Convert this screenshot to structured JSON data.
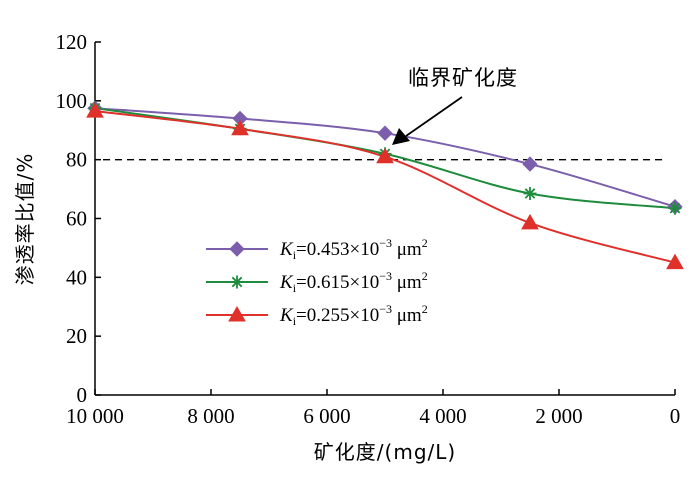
{
  "chart_data": {
    "type": "line",
    "title": "",
    "xlabel": "矿化度/(mg/L)",
    "ylabel": "渗透率比值/%",
    "xlim": [
      10000,
      0
    ],
    "ylim": [
      0,
      120
    ],
    "x_ticks": [
      10000,
      8000,
      6000,
      4000,
      2000,
      0
    ],
    "x_tick_labels": [
      "10 000",
      "8 000",
      "6 000",
      "4 000",
      "2 000",
      "0"
    ],
    "y_ticks": [
      0,
      20,
      40,
      60,
      80,
      100,
      120
    ],
    "y_tick_labels": [
      "0",
      "20",
      "40",
      "60",
      "80",
      "100",
      "120"
    ],
    "grid": false,
    "legend_position": "center-left",
    "reference_line": {
      "y": 80,
      "style": "dashed"
    },
    "annotation": {
      "text": "临界矿化度",
      "points_to": {
        "x": 5000,
        "y": 80
      }
    },
    "series": [
      {
        "name": "Ki=0.453×10−3 μm2",
        "symbol": "K",
        "subscript": "i",
        "value_text": "=0.453×10",
        "exponent": "−3",
        "unit": " μm",
        "unit_exp": "2",
        "marker": "diamond",
        "color": "#7b5fad",
        "x": [
          10000,
          7500,
          5000,
          2500,
          0
        ],
        "y": [
          97.5,
          94,
          89,
          78.5,
          64
        ]
      },
      {
        "name": "Ki=0.615×10−3 μm2",
        "symbol": "K",
        "subscript": "i",
        "value_text": "=0.615×10",
        "exponent": "−3",
        "unit": " μm",
        "unit_exp": "2",
        "marker": "asterisk",
        "color": "#1e8c3c",
        "x": [
          10000,
          7500,
          5000,
          2500,
          0
        ],
        "y": [
          97.5,
          90.5,
          82,
          68.5,
          63.5
        ]
      },
      {
        "name": "Ki=0.255×10−3 μm2",
        "symbol": "K",
        "subscript": "i",
        "value_text": "=0.255×10",
        "exponent": "−3",
        "unit": " μm",
        "unit_exp": "2",
        "marker": "triangle",
        "color": "#e0302a",
        "x": [
          10000,
          7500,
          5000,
          2500,
          0
        ],
        "y": [
          96.5,
          90.5,
          81,
          58.5,
          45
        ]
      }
    ]
  }
}
